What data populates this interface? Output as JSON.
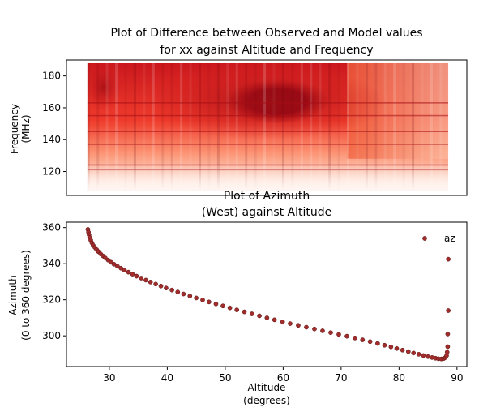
{
  "chart_data": [
    {
      "type": "heatmap",
      "title_lines": [
        "Plot of Difference between Observed and Model values",
        "for xx against Altitude and Frequency"
      ],
      "xlabel": "",
      "ylabel_lines": [
        "Frequency",
        "(MHz)"
      ],
      "ylim": [
        105,
        190
      ],
      "yticks": [
        120,
        140,
        160,
        180
      ],
      "ytick_labels": [
        "120",
        "140",
        "160",
        "180"
      ],
      "xlim": [
        22.6,
        91.7
      ],
      "data_xrange": [
        26.2,
        88.5
      ],
      "data_yrange": [
        108,
        188
      ],
      "colormap": [
        "#fff5f0",
        "#fdbea5",
        "#fc7050",
        "#d42020",
        "#67000d"
      ],
      "regions": [
        {
          "altitude": [
            50,
            68
          ],
          "frequency": [
            150,
            178
          ],
          "level": 1.0
        },
        {
          "altitude": [
            36,
            78
          ],
          "frequency": [
            140,
            186
          ],
          "level": 0.8
        },
        {
          "altitude": [
            26,
            32
          ],
          "frequency": [
            158,
            188
          ],
          "level": 0.7
        },
        {
          "altitude": [
            26,
            88
          ],
          "frequency": [
            125,
            145
          ],
          "level": 0.5
        },
        {
          "altitude": [
            26,
            88
          ],
          "frequency": [
            108,
            120
          ],
          "level": 0.1
        }
      ],
      "streak_frequencies": [
        163,
        155,
        145,
        137,
        124,
        121
      ]
    },
    {
      "type": "scatter",
      "title_lines": [
        "Plot of Azimuth",
        "(West) against Altitude"
      ],
      "xlabel_lines": [
        "Altitude",
        "(degrees)"
      ],
      "ylabel_lines": [
        "Azimuth",
        "(0 to 360 degrees)"
      ],
      "xlim": [
        22.6,
        91.7
      ],
      "ylim": [
        283,
        363
      ],
      "xticks": [
        30,
        40,
        50,
        60,
        70,
        80,
        90
      ],
      "xtick_labels": [
        "30",
        "40",
        "50",
        "60",
        "70",
        "80",
        "90"
      ],
      "yticks": [
        300,
        320,
        340,
        360
      ],
      "ytick_labels": [
        "300",
        "320",
        "340",
        "360"
      ],
      "legend": {
        "label": "az",
        "position": "top-right"
      },
      "series": [
        {
          "name": "az",
          "color": "#a02c2c",
          "points": [
            [
              26.3,
              359
            ],
            [
              26.4,
              357.5
            ],
            [
              26.5,
              356
            ],
            [
              26.6,
              354.5
            ],
            [
              26.8,
              353
            ],
            [
              27.0,
              351.5
            ],
            [
              27.2,
              350.2
            ],
            [
              27.5,
              349
            ],
            [
              27.8,
              347.8
            ],
            [
              28.1,
              346.7
            ],
            [
              28.5,
              345.4
            ],
            [
              28.9,
              344.3
            ],
            [
              29.3,
              343.2
            ],
            [
              29.8,
              342
            ],
            [
              30.3,
              340.8
            ],
            [
              30.8,
              339.7
            ],
            [
              31.4,
              338.6
            ],
            [
              32.0,
              337.5
            ],
            [
              32.6,
              336.4
            ],
            [
              33.3,
              335.3
            ],
            [
              34.0,
              334.2
            ],
            [
              34.7,
              333.1
            ],
            [
              35.5,
              332
            ],
            [
              36.3,
              330.9
            ],
            [
              37.1,
              329.8
            ],
            [
              38.0,
              328.7
            ],
            [
              38.9,
              327.6
            ],
            [
              39.8,
              326.5
            ],
            [
              40.8,
              325.4
            ],
            [
              41.8,
              324.3
            ],
            [
              42.8,
              323.2
            ],
            [
              43.9,
              322.1
            ],
            [
              45.0,
              321
            ],
            [
              46.1,
              319.9
            ],
            [
              47.2,
              318.8
            ],
            [
              48.4,
              317.7
            ],
            [
              49.6,
              316.6
            ],
            [
              50.8,
              315.5
            ],
            [
              52.0,
              314.4
            ],
            [
              53.3,
              313.3
            ],
            [
              54.6,
              312.2
            ],
            [
              55.9,
              311.1
            ],
            [
              57.2,
              310
            ],
            [
              58.5,
              308.9
            ],
            [
              59.9,
              307.8
            ],
            [
              61.2,
              306.8
            ],
            [
              62.6,
              305.8
            ],
            [
              64.0,
              304.8
            ],
            [
              65.4,
              303.8
            ],
            [
              66.8,
              302.8
            ],
            [
              68.2,
              301.8
            ],
            [
              69.6,
              300.8
            ],
            [
              71.0,
              299.8
            ],
            [
              72.4,
              298.8
            ],
            [
              73.7,
              297.8
            ],
            [
              75.0,
              296.8
            ],
            [
              76.3,
              295.8
            ],
            [
              77.5,
              294.8
            ],
            [
              78.6,
              293.9
            ],
            [
              79.6,
              293
            ],
            [
              80.6,
              292.1
            ],
            [
              81.6,
              291.3
            ],
            [
              82.5,
              290.5
            ],
            [
              83.4,
              289.8
            ],
            [
              84.2,
              289.1
            ],
            [
              85.0,
              288.5
            ],
            [
              85.7,
              288
            ],
            [
              86.3,
              287.6
            ],
            [
              86.8,
              287.3
            ],
            [
              87.3,
              287.2
            ],
            [
              87.7,
              287.4
            ],
            [
              88.0,
              288
            ],
            [
              88.2,
              289
            ],
            [
              88.3,
              291
            ],
            [
              88.4,
              294
            ],
            [
              88.4,
              301
            ],
            [
              88.5,
              314
            ],
            [
              88.5,
              342.5
            ]
          ]
        }
      ]
    }
  ]
}
